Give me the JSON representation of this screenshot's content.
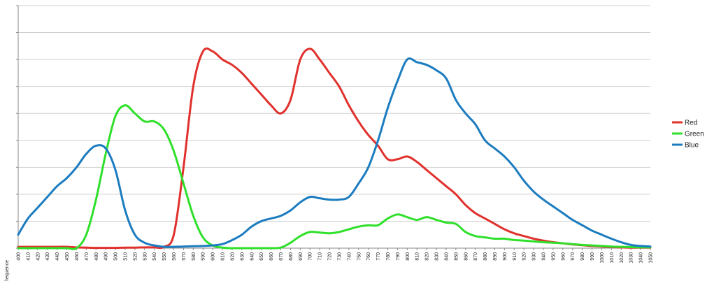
{
  "chart_data": {
    "type": "line",
    "xlabel": "frequence",
    "ylabel": "",
    "title": "",
    "x": [
      400,
      410,
      420,
      430,
      440,
      450,
      460,
      470,
      480,
      490,
      500,
      510,
      520,
      530,
      540,
      550,
      560,
      570,
      580,
      590,
      600,
      610,
      620,
      630,
      640,
      650,
      660,
      670,
      680,
      690,
      700,
      710,
      720,
      730,
      740,
      750,
      760,
      770,
      780,
      790,
      800,
      810,
      820,
      830,
      840,
      850,
      860,
      870,
      880,
      890,
      900,
      910,
      920,
      930,
      940,
      950,
      960,
      970,
      980,
      990,
      1000,
      1010,
      1020,
      1030,
      1040,
      1050
    ],
    "ylim": [
      0,
      9
    ],
    "y_ticks": [
      0,
      1,
      2,
      3,
      4,
      5,
      6,
      7,
      8,
      9
    ],
    "grid": true,
    "legend_position": "right",
    "series": [
      {
        "name": "Red",
        "color": "#e0312d",
        "values": [
          0.05,
          0.05,
          0.05,
          0.05,
          0.05,
          0.05,
          0.03,
          0.02,
          0.01,
          0.01,
          0.01,
          0.02,
          0.02,
          0.03,
          0.03,
          0.05,
          0.5,
          3.0,
          6.0,
          7.3,
          7.3,
          7.0,
          6.8,
          6.5,
          6.1,
          5.7,
          5.3,
          5.0,
          5.5,
          7.0,
          7.4,
          7.0,
          6.5,
          6.0,
          5.3,
          4.7,
          4.2,
          3.8,
          3.3,
          3.3,
          3.4,
          3.2,
          2.9,
          2.6,
          2.3,
          2.0,
          1.6,
          1.3,
          1.1,
          0.9,
          0.7,
          0.55,
          0.45,
          0.35,
          0.28,
          0.22,
          0.18,
          0.14,
          0.11,
          0.08,
          0.06,
          0.04,
          0.03,
          0.02,
          0.02,
          0.02
        ]
      },
      {
        "name": "Green",
        "color": "#2fe02a",
        "values": [
          0.0,
          0.0,
          0.0,
          0.0,
          0.0,
          0.0,
          0.0,
          0.5,
          1.8,
          3.5,
          4.9,
          5.3,
          5.0,
          4.7,
          4.7,
          4.4,
          3.6,
          2.4,
          1.2,
          0.4,
          0.1,
          0.02,
          0.0,
          0.0,
          0.0,
          0.0,
          0.0,
          0.02,
          0.2,
          0.45,
          0.6,
          0.58,
          0.55,
          0.6,
          0.7,
          0.8,
          0.85,
          0.85,
          1.1,
          1.25,
          1.15,
          1.05,
          1.15,
          1.05,
          0.95,
          0.9,
          0.6,
          0.45,
          0.4,
          0.35,
          0.35,
          0.3,
          0.28,
          0.25,
          0.22,
          0.2,
          0.18,
          0.15,
          0.12,
          0.1,
          0.08,
          0.06,
          0.05,
          0.04,
          0.03,
          0.03
        ]
      },
      {
        "name": "Blue",
        "color": "#1c7cc0",
        "values": [
          0.5,
          1.1,
          1.5,
          1.9,
          2.3,
          2.6,
          3.0,
          3.5,
          3.8,
          3.7,
          2.9,
          1.4,
          0.5,
          0.2,
          0.1,
          0.05,
          0.05,
          0.06,
          0.07,
          0.08,
          0.1,
          0.15,
          0.3,
          0.5,
          0.8,
          1.0,
          1.1,
          1.2,
          1.4,
          1.7,
          1.9,
          1.85,
          1.8,
          1.8,
          1.9,
          2.4,
          3.0,
          4.0,
          5.2,
          6.2,
          7.0,
          6.9,
          6.8,
          6.6,
          6.3,
          5.5,
          5.0,
          4.6,
          4.0,
          3.7,
          3.4,
          3.0,
          2.5,
          2.1,
          1.8,
          1.55,
          1.3,
          1.05,
          0.85,
          0.65,
          0.5,
          0.35,
          0.22,
          0.12,
          0.08,
          0.06
        ]
      }
    ]
  }
}
